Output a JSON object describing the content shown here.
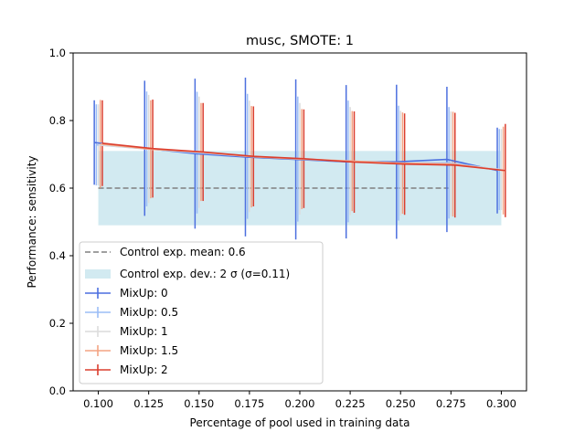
{
  "chart_data": {
    "type": "line",
    "title": "musc, SMOTE: 1",
    "xlabel": "Percentage of pool used in training data",
    "ylabel": "Performance: sensitivity",
    "xlim": [
      0.0875,
      0.3125
    ],
    "ylim": [
      0.0,
      1.0
    ],
    "xticks": [
      "0.100",
      "0.125",
      "0.150",
      "0.175",
      "0.200",
      "0.225",
      "0.250",
      "0.275",
      "0.300"
    ],
    "yticks": [
      "0.0",
      "0.2",
      "0.4",
      "0.6",
      "0.8",
      "1.0"
    ],
    "x": [
      0.1,
      0.125,
      0.15,
      0.175,
      0.2,
      0.225,
      0.25,
      0.275,
      0.3
    ],
    "control": {
      "mean": 0.6,
      "std": 0.11,
      "band": [
        0.49,
        0.71
      ],
      "x_range": [
        0.1,
        0.3
      ],
      "mean_label": "Control exp. mean: 0.6",
      "dev_label": "Control exp. dev.: 2 σ (σ=0.11)",
      "mean_color": "#808080",
      "band_color": "#add8e6"
    },
    "series": [
      {
        "name": "MixUp: 0",
        "offset": -0.002,
        "color": "#4c6fdf",
        "values": [
          0.735,
          0.718,
          0.702,
          0.692,
          0.685,
          0.678,
          0.678,
          0.685,
          0.652
        ],
        "err": [
          0.125,
          0.2,
          0.222,
          0.235,
          0.237,
          0.227,
          0.228,
          0.215,
          0.127
        ]
      },
      {
        "name": "MixUp: 0.5",
        "offset": -0.001,
        "color": "#9bbdf6",
        "values": [
          0.728,
          0.716,
          0.705,
          0.694,
          0.686,
          0.679,
          0.674,
          0.675,
          0.655
        ],
        "err": [
          0.12,
          0.17,
          0.18,
          0.185,
          0.185,
          0.18,
          0.17,
          0.165,
          0.12
        ]
      },
      {
        "name": "MixUp: 1",
        "offset": 0.0,
        "color": "#dcdcdc",
        "values": [
          0.728,
          0.716,
          0.706,
          0.694,
          0.687,
          0.68,
          0.674,
          0.672,
          0.655
        ],
        "err": [
          0.12,
          0.16,
          0.165,
          0.165,
          0.165,
          0.16,
          0.155,
          0.155,
          0.12
        ]
      },
      {
        "name": "MixUp: 1.5",
        "offset": 0.001,
        "color": "#f4a383",
        "values": [
          0.731,
          0.715,
          0.707,
          0.693,
          0.686,
          0.68,
          0.674,
          0.671,
          0.652
        ],
        "err": [
          0.13,
          0.145,
          0.145,
          0.15,
          0.148,
          0.148,
          0.15,
          0.155,
          0.13
        ]
      },
      {
        "name": "MixUp: 2",
        "offset": 0.002,
        "color": "#db3e2e",
        "values": [
          0.733,
          0.717,
          0.707,
          0.694,
          0.687,
          0.677,
          0.671,
          0.668,
          0.652
        ],
        "err": [
          0.127,
          0.145,
          0.145,
          0.148,
          0.146,
          0.15,
          0.15,
          0.155,
          0.138
        ]
      }
    ],
    "legend_position": "lower left",
    "grid": false
  }
}
